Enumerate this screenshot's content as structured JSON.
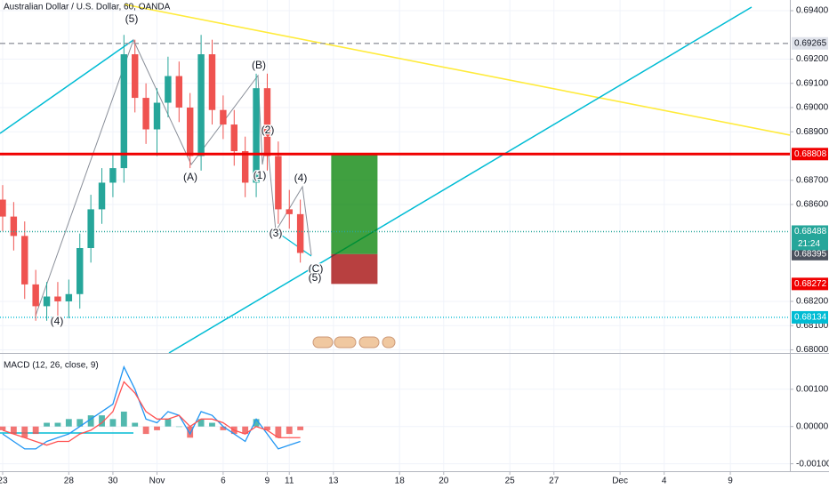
{
  "chart_data": [
    {
      "type": "candlestick",
      "title": "Australian Dollar / U.S. Dollar, 60, OANDA",
      "x": [
        0,
        0.5,
        1,
        1.5,
        2,
        2.5,
        3,
        3.5,
        4,
        4.5,
        5,
        5.5,
        6,
        6.5,
        7,
        7.5,
        8,
        8.5,
        9,
        9.5,
        10,
        10.5,
        11,
        11.5,
        12,
        12.5,
        13,
        13.5
      ],
      "open": [
        0.6862,
        0.6855,
        0.6847,
        0.6827,
        0.6818,
        0.6822,
        0.682,
        0.6823,
        0.6842,
        0.6858,
        0.6869,
        0.6875,
        0.6922,
        0.6904,
        0.6891,
        0.6902,
        0.6913,
        0.69,
        0.688,
        0.6922,
        0.6899,
        0.6893,
        0.6882,
        0.6869,
        0.6908,
        0.688,
        0.6858,
        0.6856
      ],
      "high": [
        0.6868,
        0.6861,
        0.6853,
        0.6833,
        0.6828,
        0.6828,
        0.6829,
        0.6848,
        0.6864,
        0.6875,
        0.6881,
        0.693,
        0.6928,
        0.691,
        0.6908,
        0.6921,
        0.6919,
        0.6906,
        0.693,
        0.6928,
        0.6905,
        0.6899,
        0.6888,
        0.6914,
        0.6914,
        0.6886,
        0.6866,
        0.6862
      ],
      "low": [
        0.6849,
        0.6841,
        0.6821,
        0.6812,
        0.6812,
        0.6814,
        0.6813,
        0.6817,
        0.6836,
        0.6852,
        0.6863,
        0.6869,
        0.6898,
        0.6885,
        0.688,
        0.6896,
        0.6894,
        0.6875,
        0.6874,
        0.6893,
        0.6887,
        0.6876,
        0.6863,
        0.6863,
        0.6874,
        0.6852,
        0.685,
        0.6836
      ],
      "close": [
        0.6855,
        0.6847,
        0.6827,
        0.6818,
        0.6822,
        0.682,
        0.6823,
        0.6842,
        0.6858,
        0.6869,
        0.6875,
        0.6922,
        0.6904,
        0.6891,
        0.6902,
        0.6913,
        0.69,
        0.688,
        0.6922,
        0.6899,
        0.6893,
        0.6882,
        0.6869,
        0.6908,
        0.688,
        0.6858,
        0.6856,
        0.684
      ],
      "up_color": "#26a69a",
      "down_color": "#ef5350",
      "xlim": [
        -0.12,
        35.7
      ],
      "xticks": [
        {
          "value": 0,
          "label": "23"
        },
        {
          "value": 3,
          "label": "28"
        },
        {
          "value": 5,
          "label": "30"
        },
        {
          "value": 7,
          "label": "Nov"
        },
        {
          "value": 10,
          "label": "6"
        },
        {
          "value": 12,
          "label": "9"
        },
        {
          "value": 13,
          "label": "11"
        },
        {
          "value": 15,
          "label": "13"
        },
        {
          "value": 18,
          "label": "18"
        },
        {
          "value": 20,
          "label": "20"
        },
        {
          "value": 23,
          "label": "25"
        },
        {
          "value": 25,
          "label": "27"
        },
        {
          "value": 28,
          "label": "Dec"
        },
        {
          "value": 30,
          "label": "4"
        },
        {
          "value": 33,
          "label": "9"
        }
      ],
      "ylim": [
        0.67987,
        0.69444
      ],
      "yticks": [
        {
          "value": 0.694,
          "label": "0.69400"
        },
        {
          "value": 0.692,
          "label": "0.69200"
        },
        {
          "value": 0.691,
          "label": "0.69100"
        },
        {
          "value": 0.69,
          "label": "0.69000"
        },
        {
          "value": 0.689,
          "label": "0.68900"
        },
        {
          "value": 0.687,
          "label": "0.68700"
        },
        {
          "value": 0.686,
          "label": "0.68600"
        },
        {
          "value": 0.682,
          "label": "0.68200"
        },
        {
          "value": 0.681,
          "label": "0.68100"
        },
        {
          "value": 0.68,
          "label": "0.68000"
        }
      ],
      "grid": true,
      "price_lines": [
        {
          "value": 0.69265,
          "color": "#9598a1",
          "style": "dashed",
          "text_color": "#131722",
          "fill": "#e0e3eb"
        },
        {
          "value": 0.68808,
          "color": "#f00000",
          "style": "solid",
          "text_color": "#ffffff",
          "fill": "#f00000"
        },
        {
          "value": 0.68488,
          "color": "#26a69a",
          "style": "dotted",
          "text_color": "#ffffff",
          "fill": "#26a69a"
        },
        {
          "value": 0.68395,
          "color": "#131722",
          "style": "none",
          "text_color": "#ffffff",
          "fill": "#4c525e"
        },
        {
          "value": 0.68272,
          "color": "#f00000",
          "style": "none",
          "text_color": "#ffffff",
          "fill": "#f00000"
        },
        {
          "value": 0.68134,
          "color": "#00bcd4",
          "style": "dotted",
          "text_color": "#ffffff",
          "fill": "#00bcd4"
        }
      ],
      "countdown": "21:24",
      "position": {
        "start": 14.9,
        "end": 17.0,
        "target": 0.68808,
        "entry": 0.68395,
        "stop": 0.68272
      },
      "wave_labels": [
        "(5)",
        "(4)",
        "(A)",
        "(B)",
        "(1)",
        "(2)",
        "(3)",
        "(4)",
        "(C)",
        "(5)"
      ]
    },
    {
      "type": "macd",
      "title": "MACD (12, 26, close, 9)",
      "x": [
        0,
        0.5,
        1,
        1.5,
        2,
        2.5,
        3,
        3.5,
        4,
        4.5,
        5,
        5.5,
        6,
        6.5,
        7,
        7.5,
        8,
        8.5,
        9,
        9.5,
        10,
        10.5,
        11,
        11.5,
        12,
        12.5,
        13,
        13.5
      ],
      "histogram": [
        -0.0001,
        -0.0002,
        -0.0003,
        -0.0002,
        0.0001,
        0.0001,
        0.0002,
        0.0002,
        0.0003,
        0.0003,
        0.0002,
        0.0004,
        0.0001,
        -0.0002,
        -0.0001,
        0.0002,
        0,
        -0.0003,
        0.0002,
        0.0001,
        -0.0001,
        -0.0002,
        -0.0002,
        0.0002,
        -0.0001,
        -0.0003,
        -0.0002,
        -0.0001
      ],
      "macd": [
        -0.0002,
        -0.0004,
        -0.0006,
        -0.0006,
        -0.0004,
        -0.0003,
        -0.0002,
        0,
        0.0002,
        0.0004,
        0.0006,
        0.0016,
        0.001,
        0.0002,
        0.0001,
        0.0004,
        0.0003,
        -0.0002,
        0.0004,
        0.0003,
        0,
        -0.0002,
        -0.0004,
        0.0002,
        -0.0002,
        -0.0006,
        -0.0005,
        -0.0004
      ],
      "signal": [
        -0.0001,
        -0.0002,
        -0.0003,
        -0.0004,
        -0.0005,
        -0.0004,
        -0.0004,
        -0.0002,
        -0.0001,
        0.0001,
        0.0004,
        0.0012,
        0.0009,
        0.0004,
        0.0002,
        0.0002,
        0.0003,
        0,
        0.0002,
        0.0002,
        0.0001,
        -0.0001,
        -0.0002,
        0,
        -0.0001,
        -0.0003,
        -0.0003,
        -0.0003
      ],
      "hist_up_color": "#26a69a",
      "hist_down_color": "#ef5350",
      "macd_color": "#2196f3",
      "signal_color": "#ff5252",
      "xlim": [
        -0.12,
        35.7
      ],
      "ylim": [
        -0.0012,
        0.00195
      ],
      "yticks": [
        {
          "value": 0.001,
          "label": "0.00100"
        },
        {
          "value": 0,
          "label": "0.00000"
        },
        {
          "value": -0.001,
          "label": "-0.00100"
        }
      ]
    }
  ]
}
